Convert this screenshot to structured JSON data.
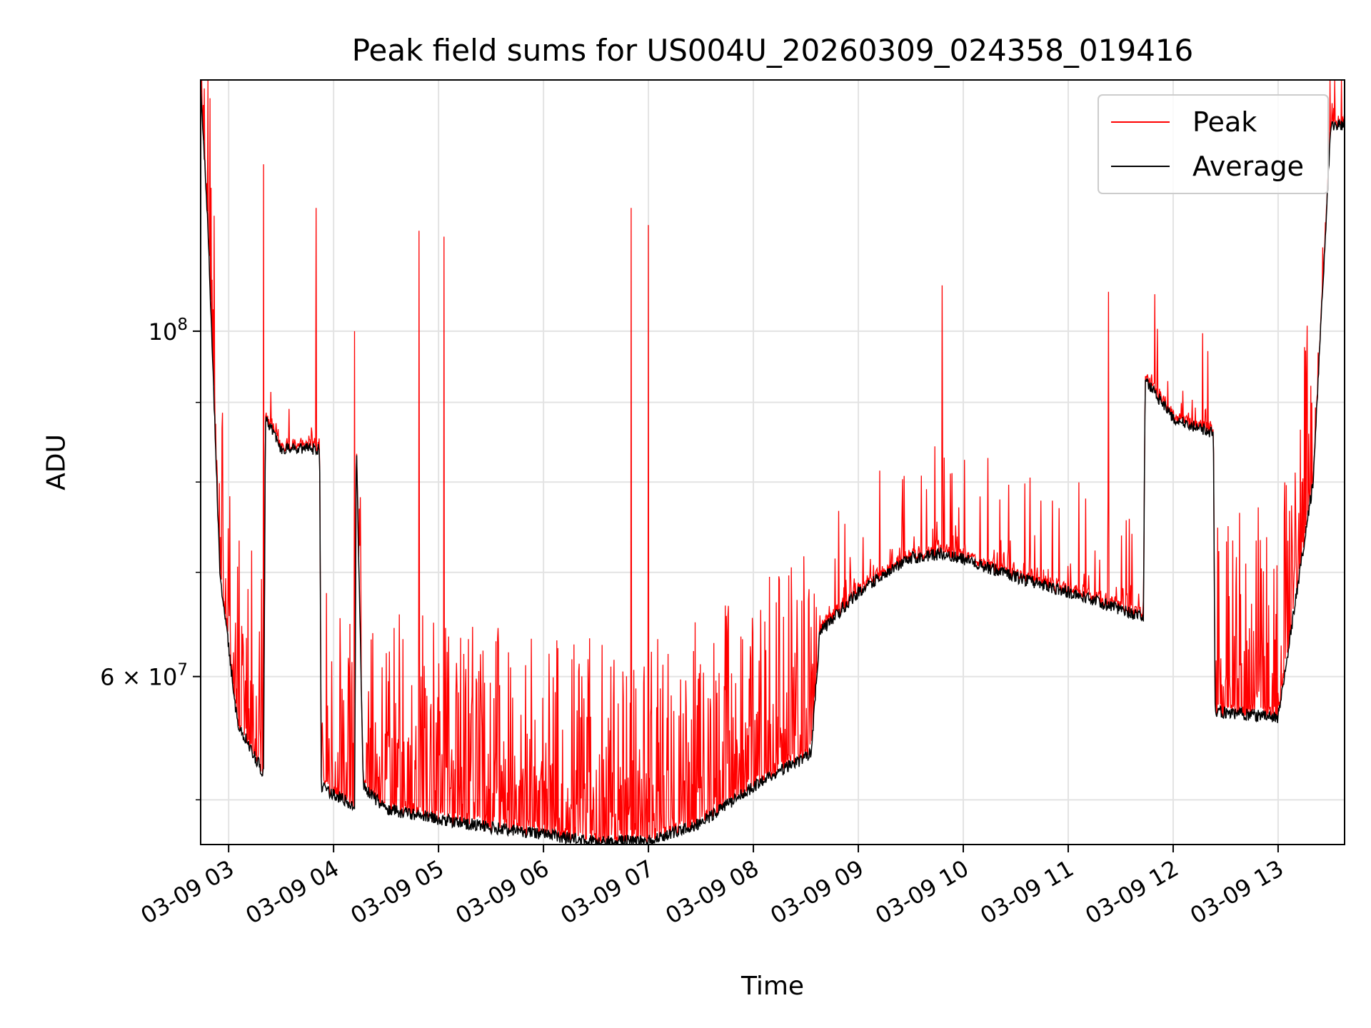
{
  "chart_data": {
    "type": "line",
    "title": "Peak field sums for US004U_20260309_024358_019416",
    "xlabel": "Time",
    "ylabel": "ADU",
    "y_scale": "log",
    "grid": true,
    "legend_position": "top-right",
    "xlim": [
      "2026-03-09 02:44",
      "2026-03-09 13:38"
    ],
    "ylim": [
      46800000,
      145000000
    ],
    "x_ticks": [
      "03-09 03",
      "03-09 04",
      "03-09 05",
      "03-09 06",
      "03-09 07",
      "03-09 08",
      "03-09 09",
      "03-09 10",
      "03-09 11",
      "03-09 12",
      "03-09 13"
    ],
    "y_ticks": [
      "10^8",
      "6×10^7"
    ],
    "series": [
      {
        "name": "Peak",
        "color": "#ff0000",
        "spike_points": [
          {
            "x": "2026-03-09 03:20",
            "y": 128000000
          },
          {
            "x": "2026-03-09 03:50",
            "y": 120000000
          },
          {
            "x": "2026-03-09 04:12",
            "y": 100000000
          },
          {
            "x": "2026-03-09 04:49",
            "y": 116000000
          },
          {
            "x": "2026-03-09 05:03",
            "y": 115000000
          },
          {
            "x": "2026-03-09 06:50",
            "y": 120000000
          },
          {
            "x": "2026-03-09 07:00",
            "y": 117000000
          },
          {
            "x": "2026-03-09 09:48",
            "y": 107000000
          },
          {
            "x": "2026-03-09 11:23",
            "y": 106000000
          }
        ]
      },
      {
        "name": "Average",
        "color": "#000000",
        "points": [
          {
            "x": "2026-03-09 02:44",
            "y": 144000000
          },
          {
            "x": "2026-03-09 02:48",
            "y": 118000000
          },
          {
            "x": "2026-03-09 02:55",
            "y": 70000000
          },
          {
            "x": "2026-03-09 03:05",
            "y": 56000000
          },
          {
            "x": "2026-03-09 03:20",
            "y": 52000000
          },
          {
            "x": "2026-03-09 03:21",
            "y": 88000000
          },
          {
            "x": "2026-03-09 03:30",
            "y": 84000000
          },
          {
            "x": "2026-03-09 03:52",
            "y": 84000000
          },
          {
            "x": "2026-03-09 03:53",
            "y": 51000000
          },
          {
            "x": "2026-03-09 04:12",
            "y": 49500000
          },
          {
            "x": "2026-03-09 04:13",
            "y": 85000000
          },
          {
            "x": "2026-03-09 04:17",
            "y": 51000000
          },
          {
            "x": "2026-03-09 04:30",
            "y": 49300000
          },
          {
            "x": "2026-03-09 05:00",
            "y": 48600000
          },
          {
            "x": "2026-03-09 05:30",
            "y": 48000000
          },
          {
            "x": "2026-03-09 06:00",
            "y": 47500000
          },
          {
            "x": "2026-03-09 06:30",
            "y": 47000000
          },
          {
            "x": "2026-03-09 07:00",
            "y": 47100000
          },
          {
            "x": "2026-03-09 07:30",
            "y": 48300000
          },
          {
            "x": "2026-03-09 08:00",
            "y": 51000000
          },
          {
            "x": "2026-03-09 08:33",
            "y": 53500000
          },
          {
            "x": "2026-03-09 08:38",
            "y": 64000000
          },
          {
            "x": "2026-03-09 09:00",
            "y": 68000000
          },
          {
            "x": "2026-03-09 09:30",
            "y": 71500000
          },
          {
            "x": "2026-03-09 09:50",
            "y": 72000000
          },
          {
            "x": "2026-03-09 10:30",
            "y": 69500000
          },
          {
            "x": "2026-03-09 11:00",
            "y": 68000000
          },
          {
            "x": "2026-03-09 11:43",
            "y": 65500000
          },
          {
            "x": "2026-03-09 11:44",
            "y": 93000000
          },
          {
            "x": "2026-03-09 12:00",
            "y": 88000000
          },
          {
            "x": "2026-03-09 12:23",
            "y": 86000000
          },
          {
            "x": "2026-03-09 12:24",
            "y": 57000000
          },
          {
            "x": "2026-03-09 13:00",
            "y": 56500000
          },
          {
            "x": "2026-03-09 13:20",
            "y": 80000000
          },
          {
            "x": "2026-03-09 13:30",
            "y": 135000000
          },
          {
            "x": "2026-03-09 13:38",
            "y": 136000000
          }
        ]
      }
    ]
  }
}
